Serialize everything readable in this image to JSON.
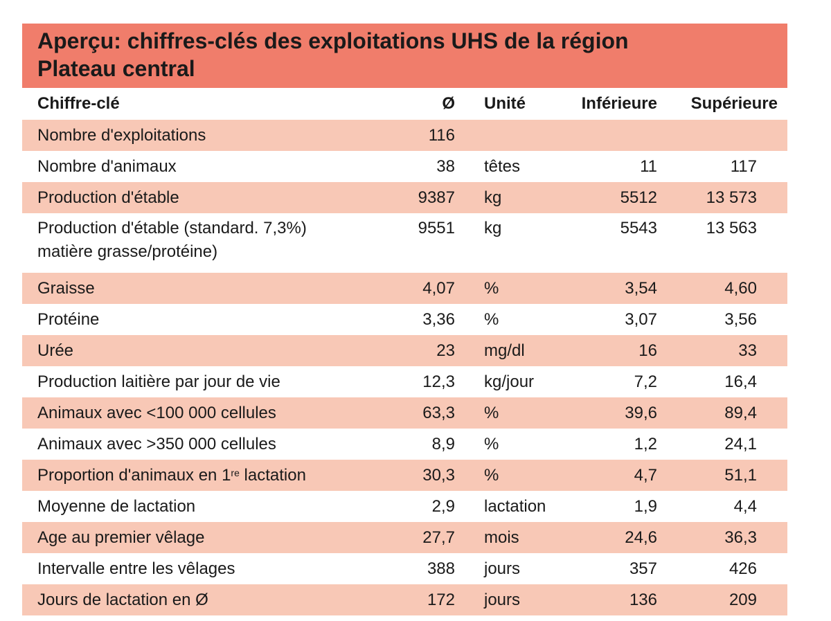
{
  "title": {
    "line1": "Aperçu: chiffres-clés des exploitations UHS de la région",
    "line2": "Plateau central"
  },
  "headers": {
    "key": "Chiffre-clé",
    "avg": "Ø",
    "unit": "Unité",
    "lower": "Inférieure",
    "upper": "Supérieure"
  },
  "rows": [
    {
      "key": "Nombre d'exploitations",
      "avg": "116",
      "unit": "",
      "lower": "",
      "upper": ""
    },
    {
      "key": "Nombre d'animaux",
      "avg": "38",
      "unit": "têtes",
      "lower": "11",
      "upper": "117"
    },
    {
      "key": "Production d'étable",
      "avg": "9387",
      "unit": "kg",
      "lower": "5512",
      "upper": "13 573"
    },
    {
      "key_line1": "Production d'étable (standard. 7,3%)",
      "key_line2": "matière grasse/protéine)",
      "avg": "9551",
      "unit": "kg",
      "lower": "5543",
      "upper": "13 563"
    },
    {
      "key": "Graisse",
      "avg": "4,07",
      "unit": "%",
      "lower": "3,54",
      "upper": "4,60"
    },
    {
      "key": "Protéine",
      "avg": "3,36",
      "unit": "%",
      "lower": "3,07",
      "upper": "3,56"
    },
    {
      "key": "Urée",
      "avg": "23",
      "unit": "mg/dl",
      "lower": "16",
      "upper": "33"
    },
    {
      "key": "Production laitière par jour de vie",
      "avg": "12,3",
      "unit": "kg/jour",
      "lower": "7,2",
      "upper": "16,4"
    },
    {
      "key": "Animaux avec <100 000 cellules",
      "avg": "63,3",
      "unit": "%",
      "lower": "39,6",
      "upper": "89,4"
    },
    {
      "key": "Animaux avec >350 000 cellules",
      "avg": "8,9",
      "unit": "%",
      "lower": "1,2",
      "upper": "24,1"
    },
    {
      "key_pre": "Proportion d'animaux en 1",
      "key_sup": "re",
      "key_post": " lactation",
      "avg": "30,3",
      "unit": "%",
      "lower": "4,7",
      "upper": "51,1"
    },
    {
      "key": "Moyenne de lactation",
      "avg": "2,9",
      "unit": "lactation",
      "lower": "1,9",
      "upper": "4,4"
    },
    {
      "key": "Age au premier vêlage",
      "avg": "27,7",
      "unit": "mois",
      "lower": "24,6",
      "upper": "36,3"
    },
    {
      "key": "Intervalle entre les vêlages",
      "avg": "388",
      "unit": "jours",
      "lower": "357",
      "upper": "426"
    },
    {
      "key": "Jours de lactation en Ø",
      "avg": "172",
      "unit": "jours",
      "lower": "136",
      "upper": "209"
    }
  ]
}
